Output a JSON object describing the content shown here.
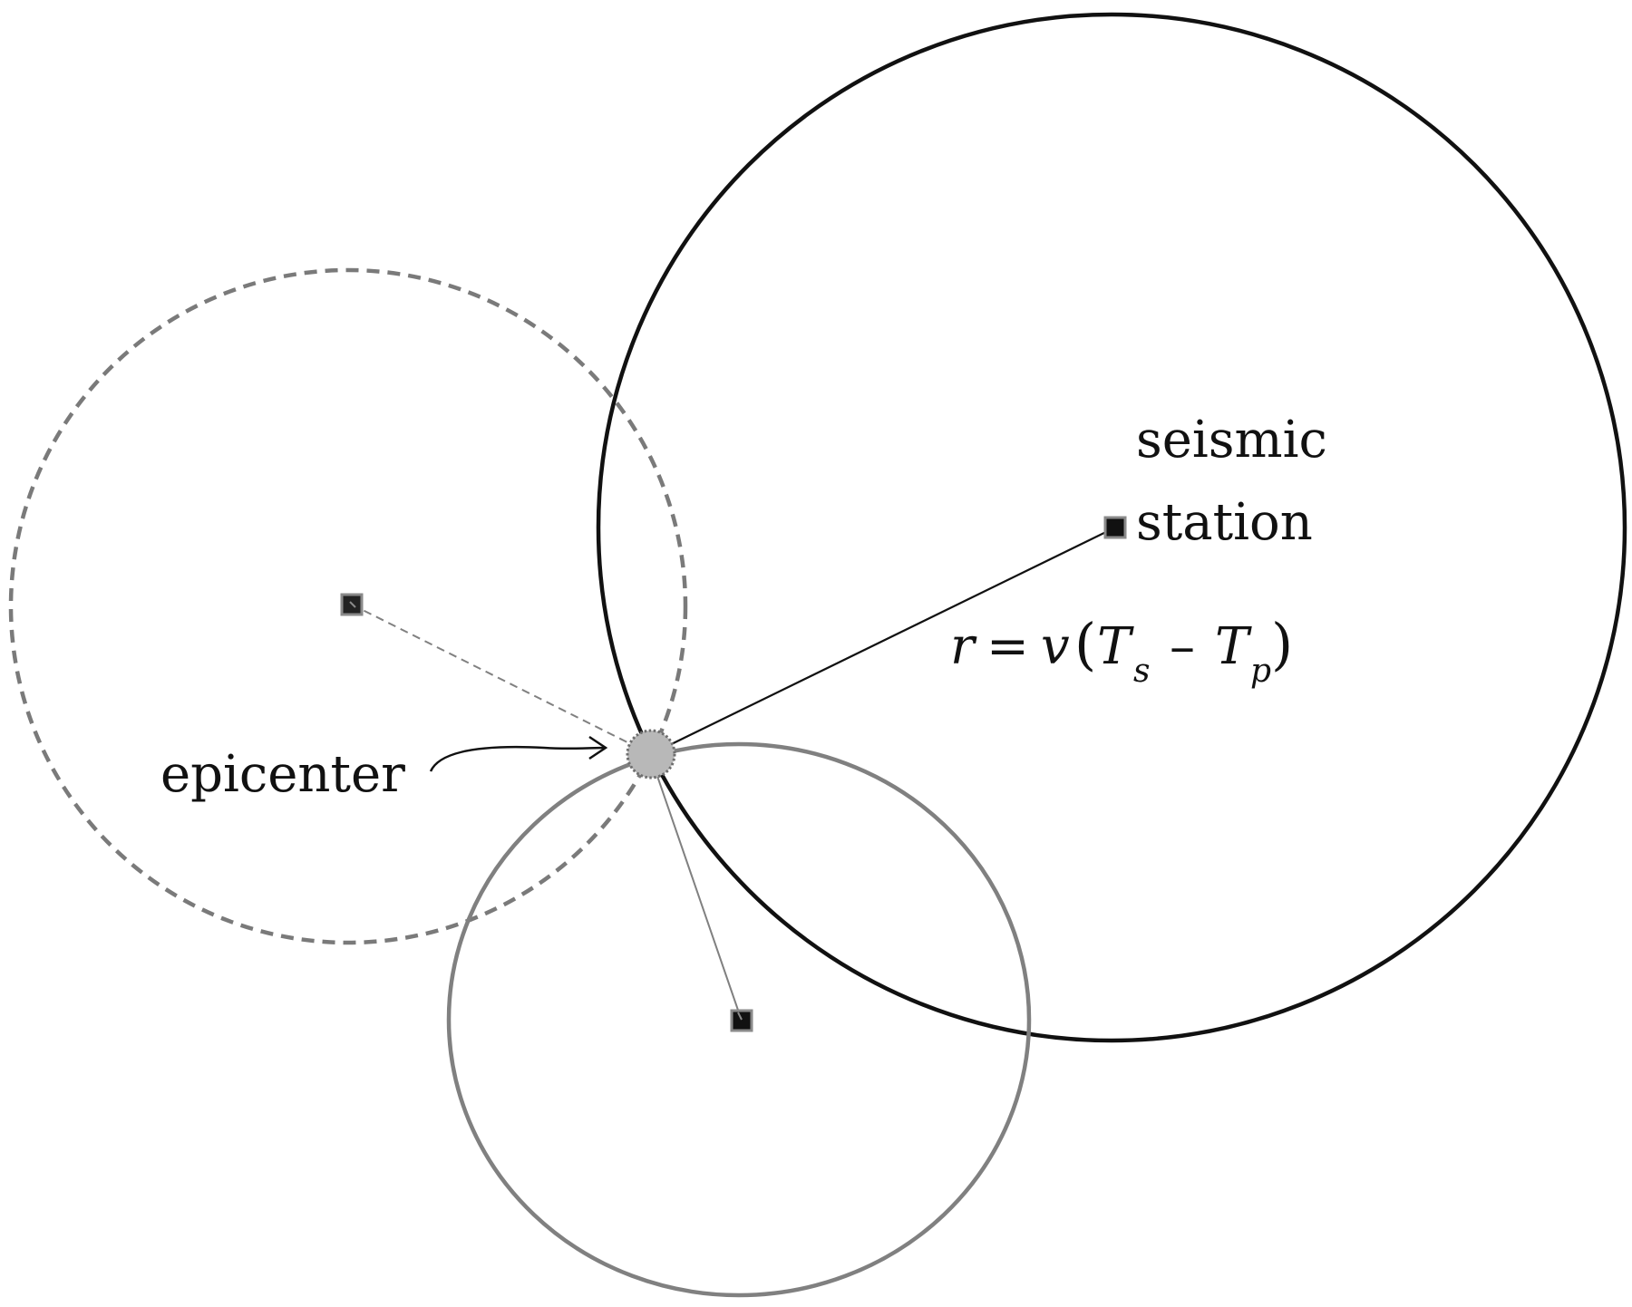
{
  "labels": {
    "station_line1": "seismic",
    "station_line2": "station",
    "epicenter": "epicenter"
  },
  "formula": {
    "r": "r",
    "eq": "=",
    "v": "v",
    "open_paren": "(",
    "T1": "T",
    "sub_s": "s",
    "minus": "–",
    "T2": "T",
    "sub_p": "p",
    "close_paren": ")"
  },
  "colors": {
    "black": "#111111",
    "gray": "#808080",
    "dashed_gray": "#7a7a7a",
    "epicenter_fill": "#b8b8b8",
    "epicenter_ring": "#6e6e6e"
  }
}
